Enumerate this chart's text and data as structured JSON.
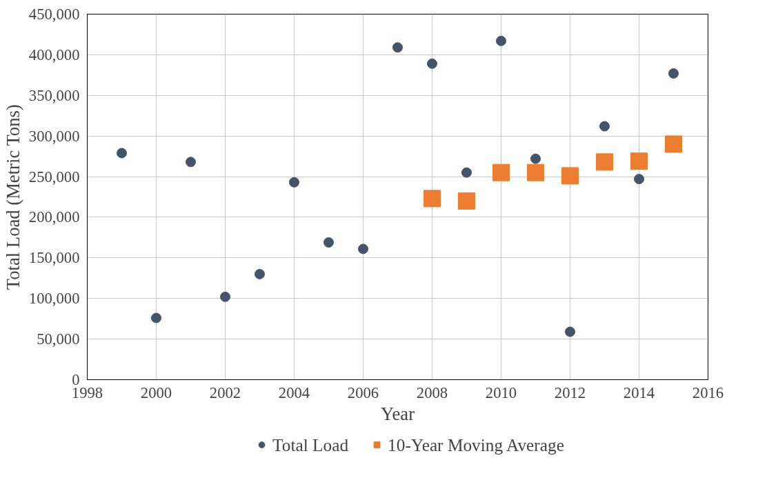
{
  "chart_data": {
    "type": "scatter",
    "xlabel": "Year",
    "ylabel": "Total Load (Metric Tons)",
    "xlim": [
      1998,
      2016
    ],
    "xticks": [
      1998,
      2000,
      2002,
      2004,
      2006,
      2008,
      2010,
      2012,
      2014,
      2016
    ],
    "ylim": [
      0,
      450000
    ],
    "yticks": [
      {
        "value": 0,
        "label": "0"
      },
      {
        "value": 50000,
        "label": "50,000"
      },
      {
        "value": 100000,
        "label": "100,000"
      },
      {
        "value": 150000,
        "label": "150,000"
      },
      {
        "value": 200000,
        "label": "200,000"
      },
      {
        "value": 250000,
        "label": "250,000"
      },
      {
        "value": 300000,
        "label": "300,000"
      },
      {
        "value": 350000,
        "label": "350,000"
      },
      {
        "value": 400000,
        "label": "400,000"
      },
      {
        "value": 450000,
        "label": "450,000"
      }
    ],
    "grid": true,
    "legend": "bottom",
    "series": [
      {
        "name": "Total Load",
        "color": "#44546a",
        "marker": "circle",
        "x": [
          1999,
          2000,
          2001,
          2002,
          2003,
          2004,
          2005,
          2006,
          2007,
          2008,
          2009,
          2010,
          2011,
          2012,
          2013,
          2014,
          2015
        ],
        "values": [
          279000,
          76000,
          268000,
          102000,
          130000,
          243000,
          169000,
          161000,
          409000,
          389000,
          255000,
          417000,
          272000,
          59000,
          312000,
          247000,
          377000
        ]
      },
      {
        "name": "10-Year Moving Average",
        "color": "#ed7d31",
        "marker": "square",
        "x": [
          2008,
          2009,
          2010,
          2011,
          2012,
          2013,
          2014,
          2015
        ],
        "values": [
          223000,
          220000,
          255000,
          255000,
          251000,
          268000,
          269000,
          290000
        ]
      }
    ]
  }
}
